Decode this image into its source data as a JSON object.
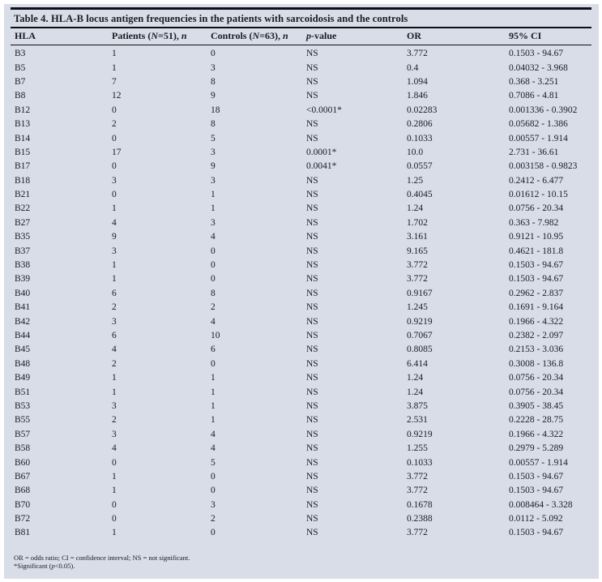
{
  "title": "Table 4. HLA-B locus antigen frequencies in the patients with sarcoidosis and the controls",
  "colors": {
    "page_bg": "#ffffff",
    "panel_bg": "#d8dde7",
    "text": "#1b1b24",
    "rule": "#0e0e15"
  },
  "table": {
    "columns": [
      {
        "name": "hla",
        "segments": [
          {
            "text": "HLA",
            "italic": false
          }
        ]
      },
      {
        "name": "patients",
        "segments": [
          {
            "text": "Patients (",
            "italic": false
          },
          {
            "text": "N",
            "italic": true
          },
          {
            "text": "=51), ",
            "italic": false
          },
          {
            "text": "n",
            "italic": true
          }
        ]
      },
      {
        "name": "controls",
        "segments": [
          {
            "text": "Controls (",
            "italic": false
          },
          {
            "text": "N",
            "italic": true
          },
          {
            "text": "=63), ",
            "italic": false
          },
          {
            "text": "n",
            "italic": true
          }
        ]
      },
      {
        "name": "p-value",
        "segments": [
          {
            "text": "p",
            "italic": true
          },
          {
            "text": "-value",
            "italic": false
          }
        ]
      },
      {
        "name": "or",
        "segments": [
          {
            "text": "OR",
            "italic": false
          }
        ]
      },
      {
        "name": "ci",
        "segments": [
          {
            "text": "95% CI",
            "italic": false
          }
        ]
      }
    ],
    "rows": [
      [
        "B3",
        "1",
        "0",
        "NS",
        "3.772",
        "0.1503 - 94.67"
      ],
      [
        "B5",
        "1",
        "3",
        "NS",
        "0.4",
        "0.04032 - 3.968"
      ],
      [
        "B7",
        "7",
        "8",
        "NS",
        "1.094",
        "0.368 - 3.251"
      ],
      [
        "B8",
        "12",
        "9",
        "NS",
        "1.846",
        "0.7086 - 4.81"
      ],
      [
        "B12",
        "0",
        "18",
        "<0.0001*",
        "0.02283",
        "0.001336 - 0.3902"
      ],
      [
        "B13",
        "2",
        "8",
        "NS",
        "0.2806",
        "0.05682 - 1.386"
      ],
      [
        "B14",
        "0",
        "5",
        "NS",
        "0.1033",
        "0.00557 - 1.914"
      ],
      [
        "B15",
        "17",
        "3",
        "0.0001*",
        "10.0",
        "2.731 - 36.61"
      ],
      [
        "B17",
        "0",
        "9",
        "0.0041*",
        "0.0557",
        "0.003158 - 0.9823"
      ],
      [
        "B18",
        "3",
        "3",
        "NS",
        "1.25",
        "0.2412 - 6.477"
      ],
      [
        "B21",
        "0",
        "1",
        "NS",
        "0.4045",
        "0.01612 - 10.15"
      ],
      [
        "B22",
        "1",
        "1",
        "NS",
        "1.24",
        "0.0756 - 20.34"
      ],
      [
        "B27",
        "4",
        "3",
        "NS",
        "1.702",
        "0.363 - 7.982"
      ],
      [
        "B35",
        "9",
        "4",
        "NS",
        "3.161",
        "0.9121 - 10.95"
      ],
      [
        "B37",
        "3",
        "0",
        "NS",
        "9.165",
        "0.4621 - 181.8"
      ],
      [
        "B38",
        "1",
        "0",
        "NS",
        "3.772",
        "0.1503 - 94.67"
      ],
      [
        "B39",
        "1",
        "0",
        "NS",
        "3.772",
        "0.1503 - 94.67"
      ],
      [
        "B40",
        "6",
        "8",
        "NS",
        "0.9167",
        "0.2962 - 2.837"
      ],
      [
        "B41",
        "2",
        "2",
        "NS",
        "1.245",
        "0.1691 - 9.164"
      ],
      [
        "B42",
        "3",
        "4",
        "NS",
        "0.9219",
        "0.1966 - 4.322"
      ],
      [
        "B44",
        "6",
        "10",
        "NS",
        "0.7067",
        "0.2382 - 2.097"
      ],
      [
        "B45",
        "4",
        "6",
        "NS",
        "0.8085",
        "0.2153 - 3.036"
      ],
      [
        "B48",
        "2",
        "0",
        "NS",
        "6.414",
        "0.3008 - 136.8"
      ],
      [
        "B49",
        "1",
        "1",
        "NS",
        "1.24",
        "0.0756 - 20.34"
      ],
      [
        "B51",
        "1",
        "1",
        "NS",
        "1.24",
        "0.0756 - 20.34"
      ],
      [
        "B53",
        "3",
        "1",
        "NS",
        "3.875",
        "0.3905 - 38.45"
      ],
      [
        "B55",
        "2",
        "1",
        "NS",
        "2.531",
        "0.2228 - 28.75"
      ],
      [
        "B57",
        "3",
        "4",
        "NS",
        "0.9219",
        "0.1966 - 4.322"
      ],
      [
        "B58",
        "4",
        "4",
        "NS",
        "1.255",
        "0.2979 - 5.289"
      ],
      [
        "B60",
        "0",
        "5",
        "NS",
        "0.1033",
        "0.00557 - 1.914"
      ],
      [
        "B67",
        "1",
        "0",
        "NS",
        "3.772",
        "0.1503 - 94.67"
      ],
      [
        "B68",
        "1",
        "0",
        "NS",
        "3.772",
        "0.1503 - 94.67"
      ],
      [
        "B70",
        "0",
        "3",
        "NS",
        "0.1678",
        "0.008464 - 3.328"
      ],
      [
        "B72",
        "0",
        "2",
        "NS",
        "0.2388",
        "0.0112 - 5.092"
      ],
      [
        "B81",
        "1",
        "0",
        "NS",
        "3.772",
        "0.1503 - 94.67"
      ]
    ]
  },
  "footnotes": {
    "line1": "OR = odds ratio; CI = confidence interval; NS = not significant.",
    "line2_segments": [
      {
        "text": "*Significant (",
        "italic": false
      },
      {
        "text": "p",
        "italic": true
      },
      {
        "text": "<0.05).",
        "italic": false
      }
    ]
  }
}
